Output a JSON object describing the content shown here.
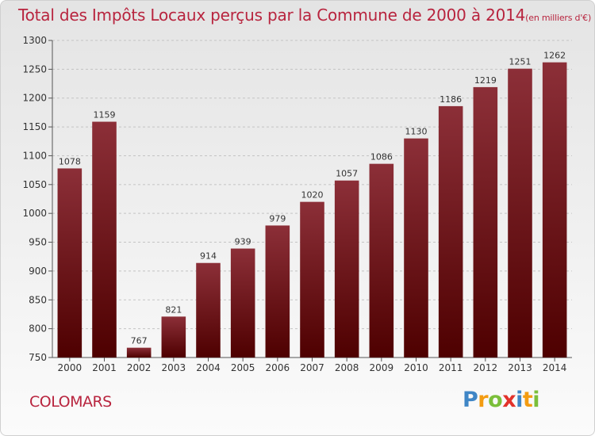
{
  "header": {
    "title": "Total des Impôts Locaux perçus par la Commune de 2000 à 2014",
    "unit": "(en milliers d'€)"
  },
  "footer": {
    "commune": "COLOMARS",
    "logo_letters": [
      "P",
      "r",
      "o",
      "x",
      "i",
      "t",
      "i"
    ],
    "logo_colors": [
      "#3f86c6",
      "#f39c12",
      "#7bbf3a",
      "#e2322b",
      "#3f86c6",
      "#f39c12",
      "#7bbf3a"
    ]
  },
  "chart_data": {
    "type": "bar",
    "title": "Total des Impôts Locaux perçus par la Commune de 2000 à 2014",
    "xlabel": "",
    "ylabel": "",
    "categories": [
      "2000",
      "2001",
      "2002",
      "2003",
      "2004",
      "2005",
      "2006",
      "2007",
      "2008",
      "2009",
      "2010",
      "2011",
      "2012",
      "2013",
      "2014"
    ],
    "values": [
      1078,
      1159,
      767,
      821,
      914,
      939,
      979,
      1020,
      1057,
      1086,
      1130,
      1186,
      1219,
      1251,
      1262
    ],
    "ylim": [
      750,
      1300
    ],
    "yticks": [
      750,
      800,
      850,
      900,
      950,
      1000,
      1050,
      1100,
      1150,
      1200,
      1250,
      1300
    ],
    "grid": true,
    "legend": "none",
    "colors": {
      "bar_top": "#8c2f38",
      "bar_bottom": "#4e0000",
      "text": "#b8243e"
    }
  }
}
